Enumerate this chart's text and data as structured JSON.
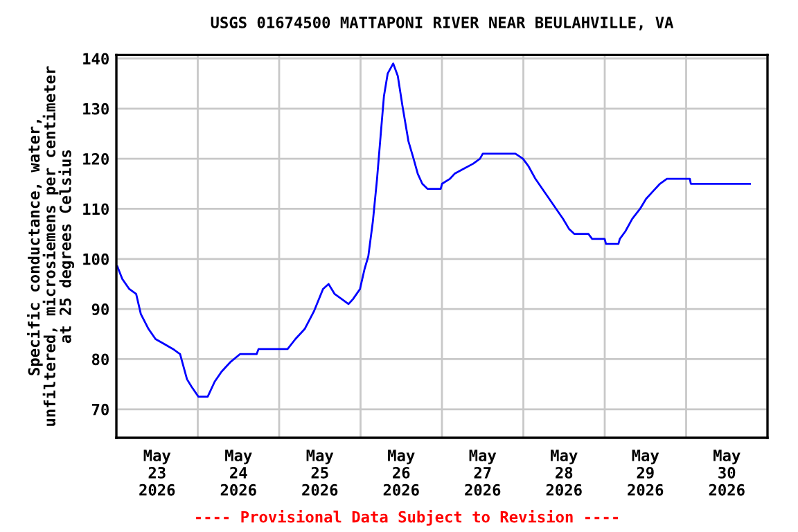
{
  "chart_data": {
    "type": "line",
    "title": "USGS 01674500 MATTAPONI RIVER NEAR BEULAHVILLE, VA",
    "ylabel": "Specific conductance, water,\nunfiltered, microsiemens per centimeter\nat 25 degrees Celsius",
    "annotations": [
      "---- Provisional Data Subject to Revision ----"
    ],
    "series": [
      {
        "color": "#0000ff",
        "x": [
          "2026-05-23T00:17",
          "2026-05-23T01:45",
          "2026-05-23T03:48",
          "2026-05-23T05:50",
          "2026-05-23T07:13",
          "2026-05-23T09:30",
          "2026-05-23T11:33",
          "2026-05-23T14:10",
          "2026-05-23T16:44",
          "2026-05-23T18:47",
          "2026-05-23T20:49",
          "2026-05-23T22:10",
          "2026-05-24T00:12",
          "2026-05-24T02:56",
          "2026-05-24T04:59",
          "2026-05-24T07:01",
          "2026-05-24T09:45",
          "2026-05-24T12:27",
          "2026-05-24T17:21",
          "2026-05-24T17:55",
          "2026-05-25T02:29",
          "2026-05-25T04:47",
          "2026-05-25T07:31",
          "2026-05-25T10:14",
          "2026-05-25T12:56",
          "2026-05-25T14:34",
          "2026-05-25T16:22",
          "2026-05-25T18:25",
          "2026-05-25T20:27",
          "2026-05-25T21:48",
          "2026-05-25T23:50",
          "2026-05-26T01:11",
          "2026-05-26T02:17",
          "2026-05-26T03:38",
          "2026-05-26T04:52",
          "2026-05-26T05:58",
          "2026-05-26T06:54",
          "2026-05-26T08:00",
          "2026-05-26T09:38",
          "2026-05-26T10:59",
          "2026-05-26T12:22",
          "2026-05-26T14:07",
          "2026-05-26T15:38",
          "2026-05-26T16:52",
          "2026-05-26T18:12",
          "2026-05-26T19:43",
          "2026-05-26T23:38",
          "2026-05-27T00:02",
          "2026-05-27T02:22",
          "2026-05-27T03:43",
          "2026-05-27T06:27",
          "2026-05-27T09:11",
          "2026-05-27T11:13",
          "2026-05-27T12:02",
          "2026-05-27T21:40",
          "2026-05-27T23:53",
          "2026-05-28T01:31",
          "2026-05-28T03:33",
          "2026-05-28T05:35",
          "2026-05-28T07:38",
          "2026-05-28T09:40",
          "2026-05-28T11:43",
          "2026-05-28T13:28",
          "2026-05-28T14:59",
          "2026-05-28T19:11",
          "2026-05-28T20:17",
          "2026-05-28T23:58",
          "2026-05-29T00:22",
          "2026-05-29T04:02",
          "2026-05-29T04:27",
          "2026-05-29T06:05",
          "2026-05-29T08:07",
          "2026-05-29T10:25",
          "2026-05-29T12:12",
          "2026-05-29T14:14",
          "2026-05-29T16:17",
          "2026-05-29T18:20",
          "2026-05-30T01:06",
          "2026-05-30T01:23",
          "2026-05-30T18:49"
        ],
        "values": [
          98.5,
          96,
          94,
          93,
          89,
          86,
          84,
          83,
          82,
          81,
          76,
          74.5,
          72.5,
          72.5,
          75.5,
          77.5,
          79.5,
          81,
          81,
          82,
          82,
          84,
          86,
          89.5,
          94,
          95,
          93,
          92,
          91,
          92,
          94,
          98,
          100.5,
          107.5,
          116,
          125,
          132.5,
          137,
          139,
          136.5,
          130.5,
          123.5,
          120,
          117,
          115,
          114,
          114,
          115,
          116,
          117,
          118,
          119,
          120,
          121,
          121,
          120,
          118.5,
          116,
          114,
          112,
          110,
          108,
          106,
          105,
          105,
          104,
          104,
          103,
          103,
          104,
          105.5,
          108,
          110,
          112,
          113.5,
          115,
          116,
          116,
          115,
          115
        ]
      }
    ],
    "xlim": [
      "2026-05-23T00:00",
      "2026-05-31T00:00"
    ],
    "xticks": [
      {
        "value": "2026-05-23T00:00",
        "label": null
      },
      {
        "value": "2026-05-23T12:00",
        "label": "May\n23\n2026"
      },
      {
        "value": "2026-05-24T00:00",
        "label": null
      },
      {
        "value": "2026-05-24T12:00",
        "label": "May\n24\n2026"
      },
      {
        "value": "2026-05-25T00:00",
        "label": null
      },
      {
        "value": "2026-05-25T12:00",
        "label": "May\n25\n2026"
      },
      {
        "value": "2026-05-26T00:00",
        "label": null
      },
      {
        "value": "2026-05-26T12:00",
        "label": "May\n26\n2026"
      },
      {
        "value": "2026-05-27T00:00",
        "label": null
      },
      {
        "value": "2026-05-27T12:00",
        "label": "May\n27\n2026"
      },
      {
        "value": "2026-05-28T00:00",
        "label": null
      },
      {
        "value": "2026-05-28T12:00",
        "label": "May\n28\n2026"
      },
      {
        "value": "2026-05-29T00:00",
        "label": null
      },
      {
        "value": "2026-05-29T12:00",
        "label": "May\n29\n2026"
      },
      {
        "value": "2026-05-30T00:00",
        "label": null
      },
      {
        "value": "2026-05-30T12:00",
        "label": "May\n30\n2026"
      },
      {
        "value": "2026-05-31T00:00",
        "label": null
      }
    ],
    "ylim": [
      64.3,
      140.7
    ],
    "yticks": [
      70,
      80,
      90,
      100,
      110,
      120,
      130,
      140
    ],
    "grid": true,
    "legend": false
  }
}
